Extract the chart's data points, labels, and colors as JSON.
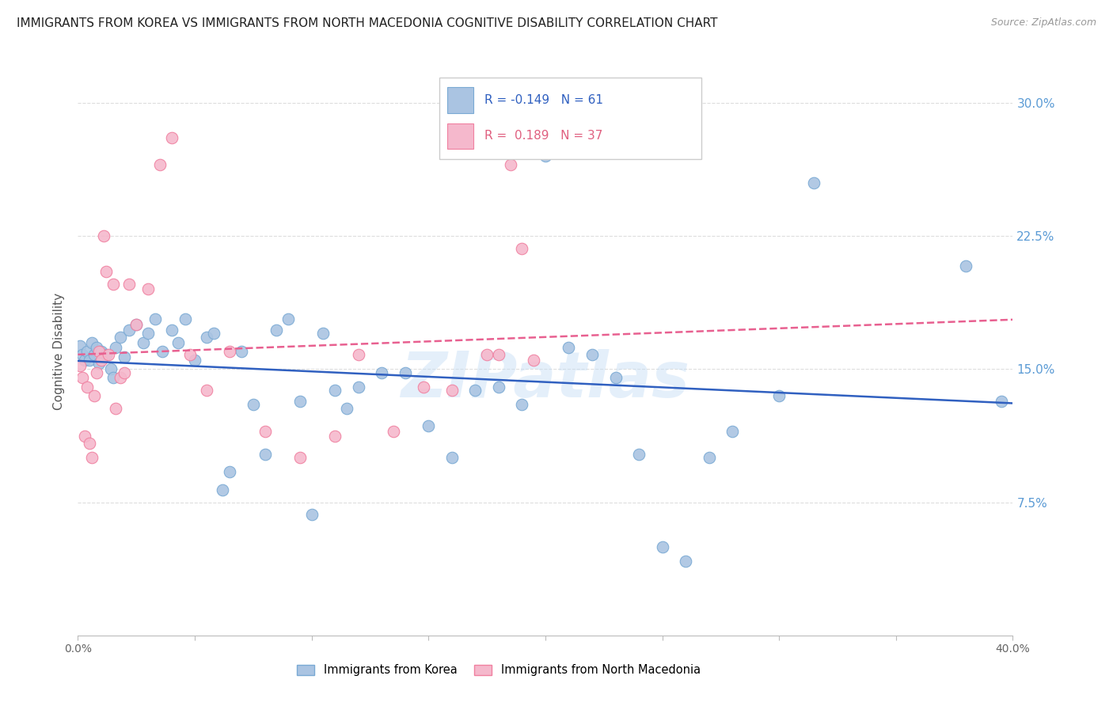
{
  "title": "IMMIGRANTS FROM KOREA VS IMMIGRANTS FROM NORTH MACEDONIA COGNITIVE DISABILITY CORRELATION CHART",
  "source": "Source: ZipAtlas.com",
  "ylabel": "Cognitive Disability",
  "xlim": [
    0.0,
    0.4
  ],
  "ylim": [
    0.0,
    0.32
  ],
  "ytick_positions": [
    0.075,
    0.15,
    0.225,
    0.3
  ],
  "ytick_labels": [
    "7.5%",
    "15.0%",
    "22.5%",
    "30.0%"
  ],
  "korea_color": "#aac4e2",
  "korea_edge": "#7aaad4",
  "macedonia_color": "#f5b8cc",
  "macedonia_edge": "#f080a0",
  "korea_line_color": "#3060c0",
  "macedonia_line_color": "#e86090",
  "legend_korea_label": "Immigrants from Korea",
  "legend_macedonia_label": "Immigrants from North Macedonia",
  "watermark": "ZIPatlas",
  "grid_color": "#dddddd",
  "korea_x": [
    0.001,
    0.002,
    0.003,
    0.004,
    0.005,
    0.006,
    0.007,
    0.008,
    0.009,
    0.01,
    0.012,
    0.014,
    0.015,
    0.016,
    0.018,
    0.02,
    0.022,
    0.025,
    0.028,
    0.03,
    0.033,
    0.036,
    0.04,
    0.043,
    0.046,
    0.05,
    0.055,
    0.058,
    0.062,
    0.065,
    0.07,
    0.075,
    0.08,
    0.085,
    0.09,
    0.095,
    0.1,
    0.105,
    0.11,
    0.115,
    0.12,
    0.13,
    0.14,
    0.15,
    0.16,
    0.17,
    0.18,
    0.19,
    0.2,
    0.21,
    0.22,
    0.23,
    0.24,
    0.25,
    0.26,
    0.27,
    0.28,
    0.3,
    0.315,
    0.38,
    0.395
  ],
  "korea_y": [
    0.163,
    0.158,
    0.155,
    0.16,
    0.155,
    0.165,
    0.158,
    0.162,
    0.153,
    0.16,
    0.158,
    0.15,
    0.145,
    0.162,
    0.168,
    0.157,
    0.172,
    0.175,
    0.165,
    0.17,
    0.178,
    0.16,
    0.172,
    0.165,
    0.178,
    0.155,
    0.168,
    0.17,
    0.082,
    0.092,
    0.16,
    0.13,
    0.102,
    0.172,
    0.178,
    0.132,
    0.068,
    0.17,
    0.138,
    0.128,
    0.14,
    0.148,
    0.148,
    0.118,
    0.1,
    0.138,
    0.14,
    0.13,
    0.27,
    0.162,
    0.158,
    0.145,
    0.102,
    0.05,
    0.042,
    0.1,
    0.115,
    0.135,
    0.255,
    0.208,
    0.132
  ],
  "macedonia_x": [
    0.001,
    0.002,
    0.003,
    0.004,
    0.005,
    0.006,
    0.007,
    0.008,
    0.009,
    0.01,
    0.011,
    0.012,
    0.013,
    0.015,
    0.016,
    0.018,
    0.02,
    0.022,
    0.025,
    0.03,
    0.035,
    0.04,
    0.048,
    0.055,
    0.065,
    0.08,
    0.095,
    0.11,
    0.12,
    0.135,
    0.148,
    0.16,
    0.175,
    0.18,
    0.185,
    0.19,
    0.195
  ],
  "macedonia_y": [
    0.152,
    0.145,
    0.112,
    0.14,
    0.108,
    0.1,
    0.135,
    0.148,
    0.16,
    0.155,
    0.225,
    0.205,
    0.158,
    0.198,
    0.128,
    0.145,
    0.148,
    0.198,
    0.175,
    0.195,
    0.265,
    0.28,
    0.158,
    0.138,
    0.16,
    0.115,
    0.1,
    0.112,
    0.158,
    0.115,
    0.14,
    0.138,
    0.158,
    0.158,
    0.265,
    0.218,
    0.155
  ]
}
